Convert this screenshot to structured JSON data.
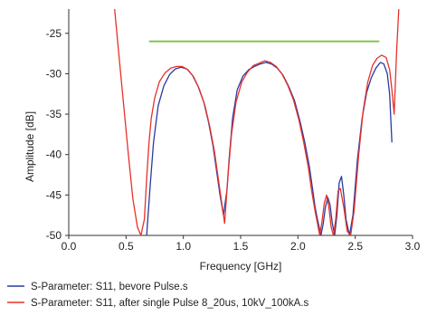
{
  "chart_data": {
    "type": "line",
    "title": "",
    "xlabel": "Frequency [GHz]",
    "ylabel": "Amplitude [dB]",
    "xlim": [
      0.0,
      3.0
    ],
    "ylim": [
      -50,
      -22
    ],
    "x_ticks": [
      0.0,
      0.5,
      1.0,
      1.5,
      2.0,
      2.5,
      3.0
    ],
    "x_tick_labels": [
      "0.0",
      "0.5",
      "1.0",
      "1.5",
      "2.0",
      "2.5",
      "3.0"
    ],
    "y_ticks": [
      -25,
      -30,
      -35,
      -40,
      -45,
      -50
    ],
    "y_tick_labels": [
      "-25",
      "-30",
      "-35",
      "-40",
      "-45",
      "-50"
    ],
    "grid": false,
    "legend_position": "bottom",
    "series": [
      {
        "name": "S-Parameter: S11, bevore Pulse.s",
        "color": "#2b3a9e",
        "x": [
          0.68,
          0.71,
          0.74,
          0.78,
          0.83,
          0.88,
          0.93,
          0.98,
          1.03,
          1.08,
          1.13,
          1.18,
          1.22,
          1.26,
          1.29,
          1.32,
          1.35,
          1.37,
          1.38,
          1.4,
          1.43,
          1.47,
          1.52,
          1.57,
          1.62,
          1.67,
          1.72,
          1.77,
          1.82,
          1.87,
          1.92,
          1.97,
          2.02,
          2.06,
          2.1,
          2.13,
          2.15,
          2.17,
          2.19,
          2.2,
          2.22,
          2.24,
          2.26,
          2.28,
          2.3,
          2.32,
          2.34,
          2.36,
          2.38,
          2.4,
          2.42,
          2.45,
          2.48,
          2.52,
          2.56,
          2.6,
          2.64,
          2.68,
          2.72,
          2.75,
          2.78,
          2.8,
          2.82
        ],
        "values": [
          -50,
          -44,
          -38.5,
          -34,
          -31.5,
          -30.1,
          -29.4,
          -29.2,
          -29.4,
          -30.2,
          -31.6,
          -33.6,
          -36.0,
          -39.0,
          -42.0,
          -45.0,
          -47.5,
          -45.5,
          -44.5,
          -40.5,
          -35.5,
          -32.0,
          -30.3,
          -29.5,
          -29.1,
          -28.8,
          -28.6,
          -28.8,
          -29.3,
          -30.2,
          -31.6,
          -33.3,
          -36.0,
          -38.5,
          -41.5,
          -44.5,
          -46.5,
          -48.0,
          -49.3,
          -50,
          -48.6,
          -46.5,
          -45.3,
          -46.2,
          -48.5,
          -50,
          -47.5,
          -43.5,
          -42.7,
          -45.0,
          -48.0,
          -50,
          -47.5,
          -40.5,
          -35.5,
          -32.3,
          -30.5,
          -29.3,
          -28.6,
          -28.8,
          -30.0,
          -32.5,
          -38.5
        ]
      },
      {
        "name": "S-Parameter: S11, after single Pulse 8_20us, 10kV_100kA.s",
        "color": "#e8312a",
        "x": [
          0.4,
          0.44,
          0.48,
          0.52,
          0.56,
          0.6,
          0.63,
          0.66,
          0.68,
          0.7,
          0.72,
          0.75,
          0.79,
          0.84,
          0.89,
          0.94,
          0.99,
          1.04,
          1.09,
          1.14,
          1.19,
          1.23,
          1.27,
          1.3,
          1.33,
          1.36,
          1.39,
          1.42,
          1.46,
          1.51,
          1.56,
          1.61,
          1.66,
          1.71,
          1.76,
          1.81,
          1.86,
          1.91,
          1.96,
          2.01,
          2.05,
          2.09,
          2.12,
          2.15,
          2.17,
          2.19,
          2.21,
          2.23,
          2.25,
          2.27,
          2.29,
          2.31,
          2.33,
          2.35,
          2.37,
          2.4,
          2.43,
          2.46,
          2.49,
          2.53,
          2.57,
          2.61,
          2.65,
          2.69,
          2.73,
          2.77,
          2.8,
          2.82,
          2.84,
          2.86,
          2.88
        ],
        "values": [
          -22,
          -28,
          -34,
          -40,
          -45.5,
          -49,
          -50,
          -48,
          -43,
          -38.5,
          -35.5,
          -33.0,
          -31.0,
          -29.9,
          -29.3,
          -29.1,
          -29.1,
          -29.5,
          -30.4,
          -31.9,
          -34.0,
          -36.5,
          -39.5,
          -42.5,
          -45.5,
          -48.5,
          -42.5,
          -37.5,
          -33.5,
          -31.0,
          -29.8,
          -29.0,
          -28.7,
          -28.4,
          -28.6,
          -29.1,
          -30.0,
          -31.4,
          -33.2,
          -35.8,
          -38.5,
          -41.5,
          -44.5,
          -47.0,
          -48.5,
          -50,
          -48.3,
          -46.0,
          -45.0,
          -46.5,
          -49.0,
          -50,
          -48.0,
          -44.5,
          -44.2,
          -46.5,
          -49.5,
          -50,
          -47.0,
          -40.0,
          -34.5,
          -31.0,
          -29.0,
          -28.1,
          -27.7,
          -28.0,
          -29.5,
          -32.0,
          -35.0,
          -27.5,
          -22
        ]
      },
      {
        "name": "",
        "color": "#7ec242",
        "x": [
          0.7,
          2.71
        ],
        "values": [
          -26.0,
          -26.0
        ]
      }
    ]
  }
}
